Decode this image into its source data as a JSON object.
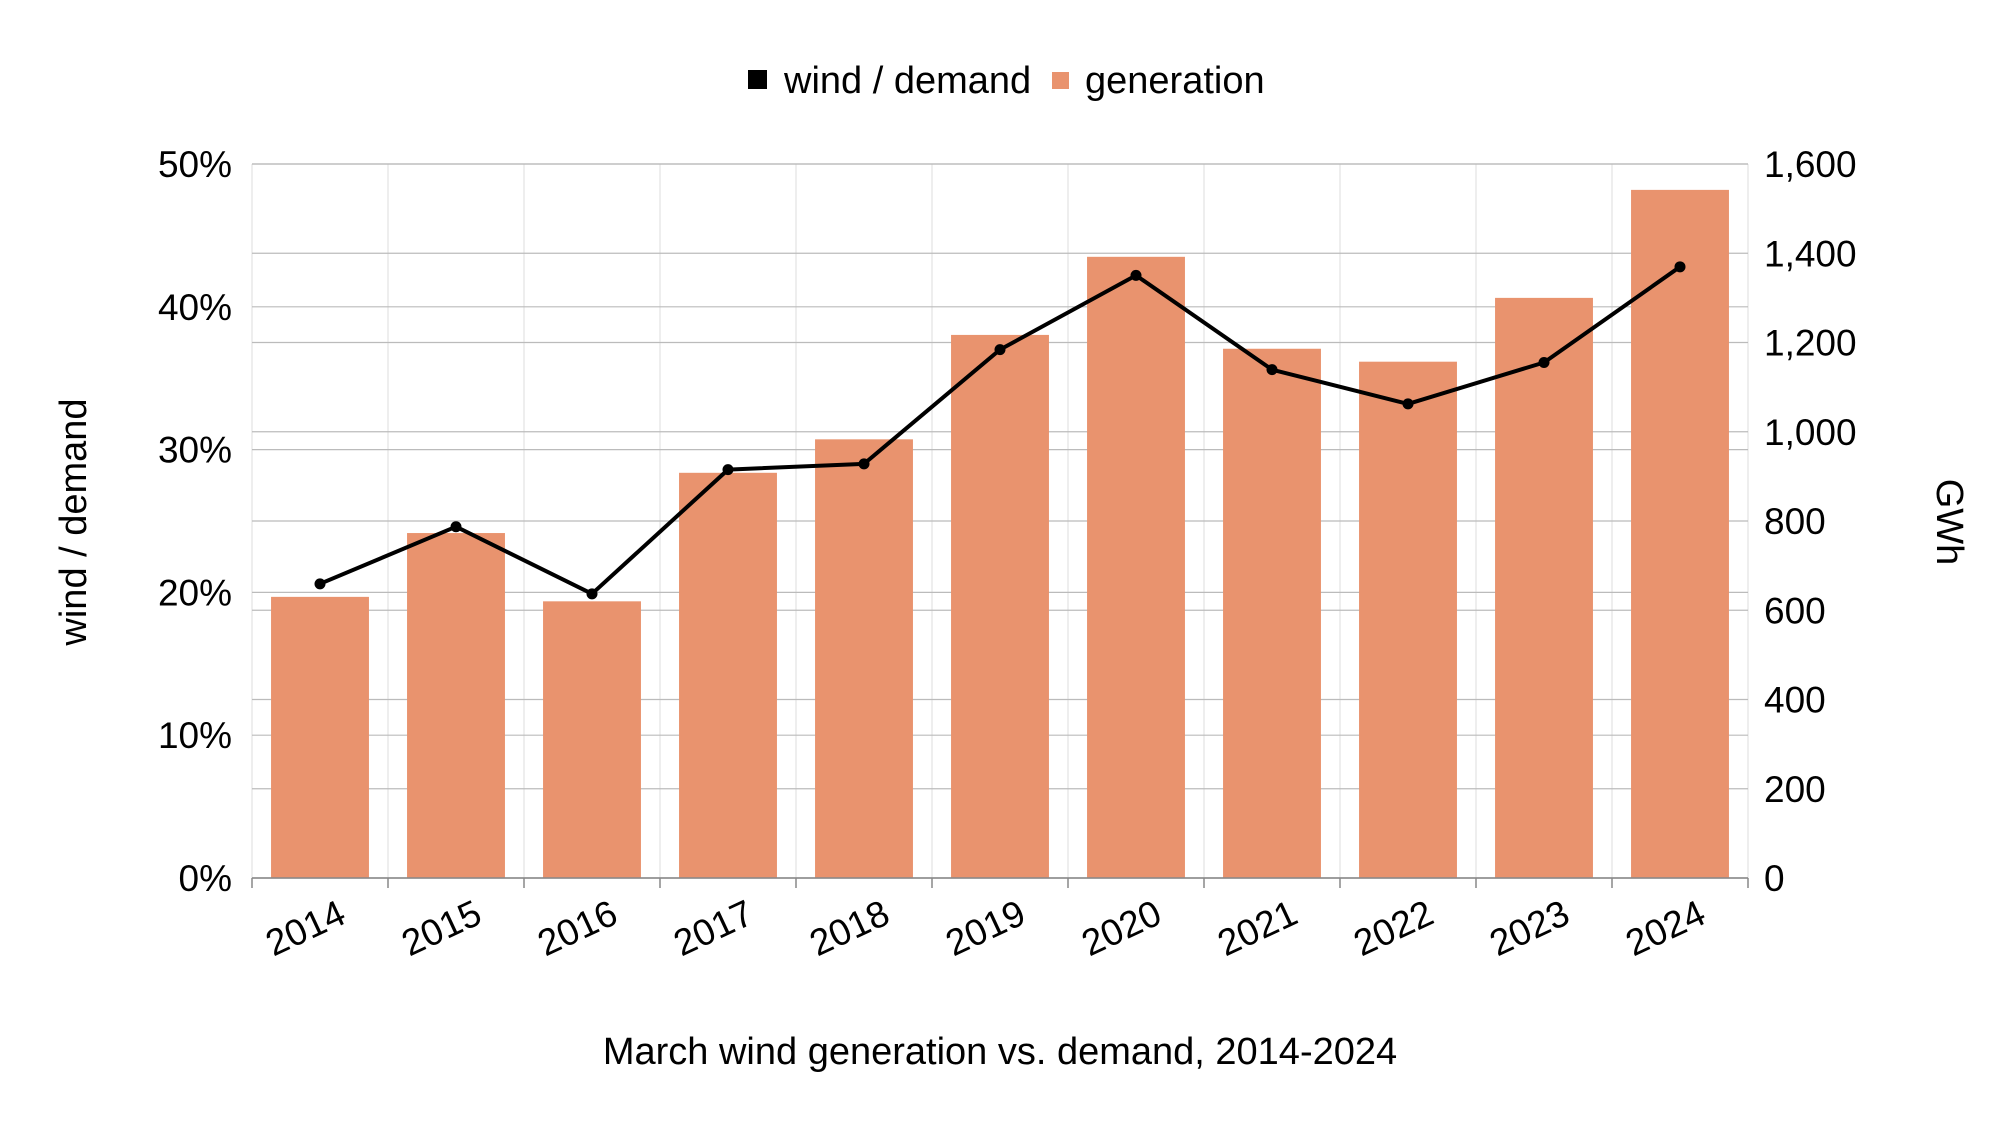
{
  "chart_data": {
    "type": "bar",
    "xlabel": "March wind generation vs. demand, 2014-2024",
    "ylabel": "wind / demand",
    "y2label": "GWh",
    "categories": [
      "2014",
      "2015",
      "2016",
      "2017",
      "2018",
      "2019",
      "2020",
      "2021",
      "2022",
      "2023",
      "2024"
    ],
    "series": [
      {
        "name": "generation",
        "kind": "bar",
        "axis": "right",
        "color": "#E9936E",
        "values": [
          630,
          773,
          620,
          908,
          983,
          1217,
          1392,
          1186,
          1157,
          1300,
          1542
        ]
      },
      {
        "name": "wind / demand",
        "kind": "line",
        "axis": "left",
        "color": "#000000",
        "values": [
          20.6,
          24.6,
          19.9,
          28.6,
          29.0,
          37.0,
          42.2,
          35.6,
          33.2,
          36.1,
          42.8
        ]
      }
    ],
    "ylim": [
      0,
      50
    ],
    "y2lim": [
      0,
      1600
    ],
    "yticks": [
      "0%",
      "10%",
      "20%",
      "30%",
      "40%",
      "50%"
    ],
    "y2ticks": [
      "0",
      "200",
      "400",
      "600",
      "800",
      "1,000",
      "1,200",
      "1,400",
      "1,600"
    ],
    "legend": {
      "position": "top-center",
      "items": [
        "wind / demand",
        "generation"
      ]
    },
    "grid": true
  }
}
